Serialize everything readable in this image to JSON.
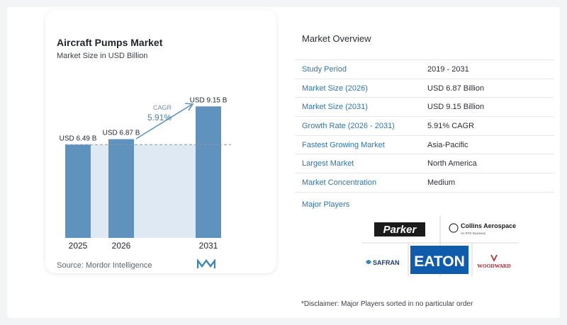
{
  "chart": {
    "title": "Aircraft Pumps Market",
    "subtitle": "Market Size in USD Billion",
    "source": "Source: Mordor Intelligence",
    "cagr_label": "CAGR",
    "cagr_value": "5.91%"
  },
  "chart_data": {
    "type": "bar",
    "categories": [
      "2025",
      "2026",
      "2031"
    ],
    "values": [
      6.49,
      6.87,
      9.15
    ],
    "value_labels": [
      "USD 6.49 B",
      "USD 6.87 B",
      "USD 9.15 B"
    ],
    "title": "Aircraft Pumps Market",
    "subtitle": "Market Size in USD Billion",
    "ylim": [
      0,
      10
    ],
    "annotation": "CAGR 5.91%",
    "grid": false,
    "colors": {
      "bar": "#5f93bd",
      "shade": "#dfe9f3",
      "arrow": "#5f93bd"
    }
  },
  "overview": {
    "title": "Market Overview",
    "rows": [
      {
        "key": "Study Period",
        "value": "2019 - 2031"
      },
      {
        "key": "Market Size (2026)",
        "value": "USD 6.87 Billion"
      },
      {
        "key": "Market Size (2031)",
        "value": "USD 9.15 Billion"
      },
      {
        "key": "Growth Rate (2026 - 2031)",
        "value": "5.91% CAGR"
      },
      {
        "key": "Fastest Growing Market",
        "value": "Asia-Pacific"
      },
      {
        "key": "Largest Market",
        "value": "North America"
      },
      {
        "key": "Market Concentration",
        "value": "Medium"
      }
    ],
    "players_title": "Major Players",
    "players": [
      "Parker",
      "Collins Aerospace",
      "An RTX Business",
      "SAFRAN",
      "EATON",
      "WOODWARD"
    ]
  },
  "disclaimer": "*Disclaimer: Major Players sorted in no particular order"
}
